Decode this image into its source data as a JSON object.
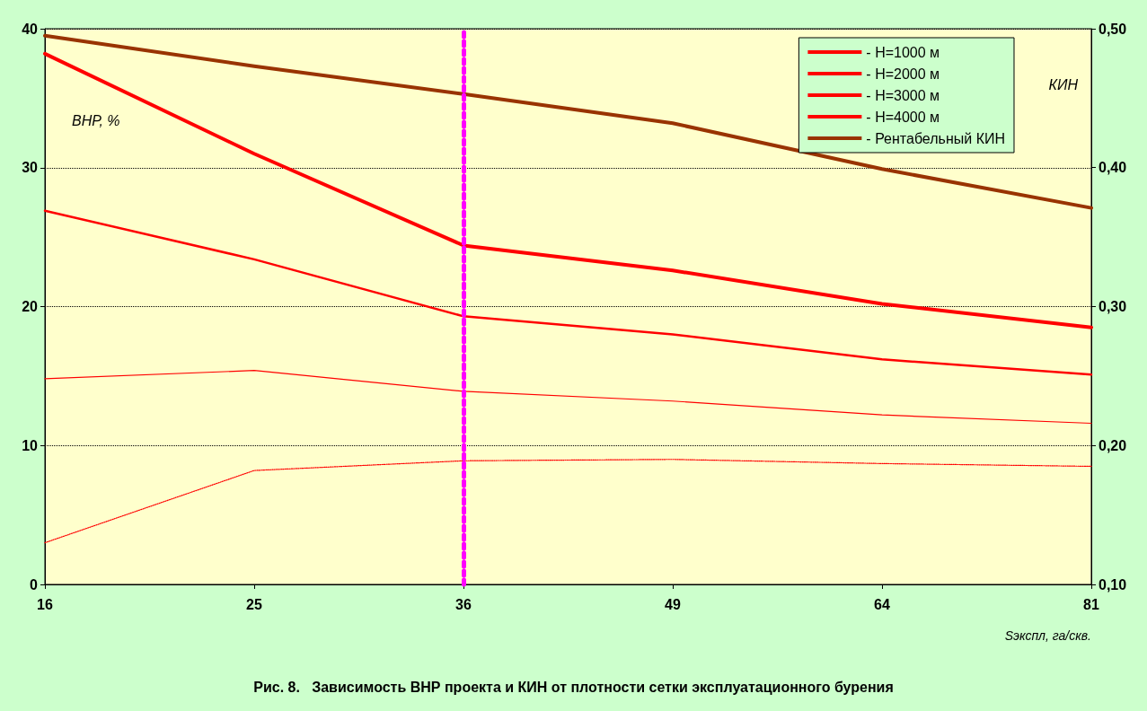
{
  "chart_data": {
    "type": "line",
    "title": "Рис. 8.   Зависимость ВНР проекта и КИН от плотности сетки эксплуатационного бурения",
    "xlabel": "Sэкспл, га/скв.",
    "ylabel": "ВНР, %",
    "y2label": "КИН",
    "categories": [
      "16",
      "25",
      "36",
      "49",
      "64",
      "81"
    ],
    "series": [
      {
        "name": "- Н=1000 м",
        "color": "#ff0000",
        "values": [
          38.2,
          31.0,
          24.4,
          22.6,
          20.2,
          18.5
        ]
      },
      {
        "name": "- Н=2000 м",
        "color": "#ff0000",
        "values": [
          26.9,
          23.4,
          19.3,
          18.0,
          16.2,
          15.1
        ]
      },
      {
        "name": "- Н=3000 м",
        "color": "#ff0000",
        "values": [
          14.8,
          15.4,
          13.9,
          13.2,
          12.2,
          11.6
        ]
      },
      {
        "name": "- Н=4000 м",
        "color": "#ff0000",
        "line_style": "dotted",
        "values": [
          3.0,
          8.2,
          8.9,
          9.0,
          8.7,
          8.5
        ]
      },
      {
        "name": "- Рентабельный КИН",
        "color": "#993300",
        "axis": "y2",
        "values": [
          0.495,
          0.473,
          0.453,
          0.432,
          0.399,
          0.371
        ]
      }
    ],
    "ylim": [
      0,
      40
    ],
    "yticks": [
      0,
      10,
      20,
      30,
      40
    ],
    "y2lim": [
      0.1,
      0.5
    ],
    "y2ticks": [
      {
        "value": 0.1,
        "label": "0,10"
      },
      {
        "value": 0.2,
        "label": "0,20"
      },
      {
        "value": 0.3,
        "label": "0,30"
      },
      {
        "value": 0.4,
        "label": "0,40"
      },
      {
        "value": 0.5,
        "label": "0,50"
      }
    ],
    "ref_lines": [
      {
        "axis": "x",
        "value": "36",
        "color": "#ff00ff",
        "line_style": "dotted"
      }
    ],
    "grid": "y",
    "legend": "top right",
    "marker": "none",
    "line_style": "solid"
  }
}
